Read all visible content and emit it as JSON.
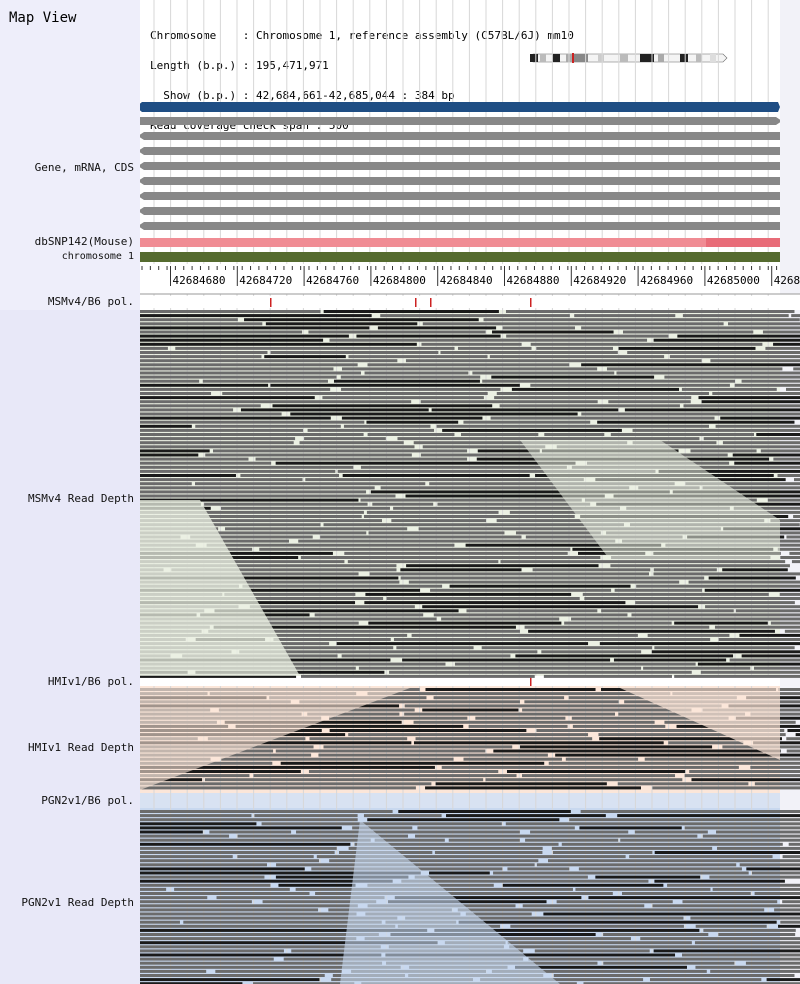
{
  "map_title": "Map View",
  "header": {
    "chromosome_label": "Chromosome    ",
    "chromosome_value": ": Chromosome 1, reference assembly (C57BL/6J) mm10",
    "length_label": "Length (b.p.)",
    "length_value": " : 195,471,971",
    "show_label": "  Show (b.p.)",
    "show_value": " : 42,684,661-42,685,044 : 384 bp",
    "coverage_label": "Read coverage check span",
    "coverage_value": " : 500"
  },
  "track_labels": {
    "gene": "Gene, mRNA, CDS",
    "dbsnp": "dbSNP142(Mouse)",
    "chromosome": "chromosome 1",
    "msmv4_pol": "MSMv4/B6 pol.",
    "msmv4_depth": "MSMv4 Read Depth",
    "hmiv1_pol": "HMIv1/B6 pol.",
    "hmiv1_depth": "HMIv1 Read Depth",
    "pgn2v1_pol": "PGN2v1/B6 pol.",
    "pgn2v1_depth": "PGN2v1 Read Depth"
  },
  "axis": {
    "tick_labels": [
      "42684680",
      "42684720",
      "42684760",
      "42684800",
      "42684840",
      "42684880",
      "42684920",
      "42684960",
      "42685000",
      "4268"
    ]
  },
  "colors": {
    "gene_top": "#1f4e84",
    "gene": "#888888",
    "dbsnp": "#f08c94",
    "dbsnp_dark": "#e86c78",
    "chromosome": "#556b2f",
    "msmv4_bg": "#ebf0e3",
    "hmiv1_bg": "#fbe6d9",
    "pgn2v1_bg": "#c8d8ef",
    "snp_mark": "#cc2222"
  },
  "icons": {
    "ideogram": "chromosome-ideogram-icon"
  }
}
